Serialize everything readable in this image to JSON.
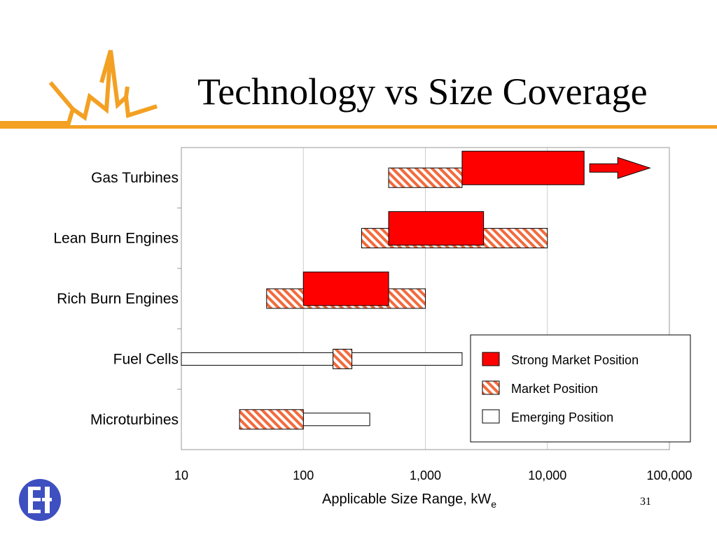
{
  "slide": {
    "title": "Technology vs Size Coverage",
    "slide_number": "31"
  },
  "colors": {
    "accent": "#f3a023",
    "strong": "#ff0000",
    "hatch": "#f26a3c",
    "logo_blue": "#3e4fc0"
  },
  "chart_data": {
    "type": "bar",
    "orientation": "horizontal-range",
    "title": "Technology vs Size Coverage",
    "xlabel": "Applicable Size Range, kW",
    "xlabel_subscript": "e",
    "x_scale": "log",
    "xlim": [
      10,
      100000
    ],
    "x_ticks": [
      10,
      100,
      1000,
      10000,
      100000
    ],
    "x_tick_labels": [
      "10",
      "100",
      "1,000",
      "10,000",
      "100,000"
    ],
    "vertical_grid": true,
    "legend_position": "bottom-right",
    "legend": [
      {
        "key": "strong",
        "label": "Strong Market  Position"
      },
      {
        "key": "market",
        "label": "Market Position"
      },
      {
        "key": "emerging",
        "label": "Emerging Position"
      }
    ],
    "categories": [
      "Gas Turbines",
      "Lean Burn Engines",
      "Rich Burn Engines",
      "Fuel Cells",
      "Microturbines"
    ],
    "ranges": [
      {
        "category": "Gas Turbines",
        "arrow": true,
        "segments": [
          {
            "type": "market",
            "from": 500,
            "to": 2000
          },
          {
            "type": "strong",
            "from": 2000,
            "to": 20000
          }
        ]
      },
      {
        "category": "Lean Burn Engines",
        "segments": [
          {
            "type": "market",
            "from": 300,
            "to": 10000
          },
          {
            "type": "strong",
            "from": 500,
            "to": 3000
          }
        ]
      },
      {
        "category": "Rich Burn Engines",
        "segments": [
          {
            "type": "market",
            "from": 50,
            "to": 1000
          },
          {
            "type": "strong",
            "from": 100,
            "to": 500
          }
        ]
      },
      {
        "category": "Fuel Cells",
        "segments": [
          {
            "type": "emerging",
            "from": 10,
            "to": 2000
          },
          {
            "type": "market",
            "from": 175,
            "to": 250
          }
        ]
      },
      {
        "category": "Microturbines",
        "segments": [
          {
            "type": "market",
            "from": 30,
            "to": 100
          },
          {
            "type": "emerging",
            "from": 100,
            "to": 350
          }
        ]
      }
    ]
  }
}
